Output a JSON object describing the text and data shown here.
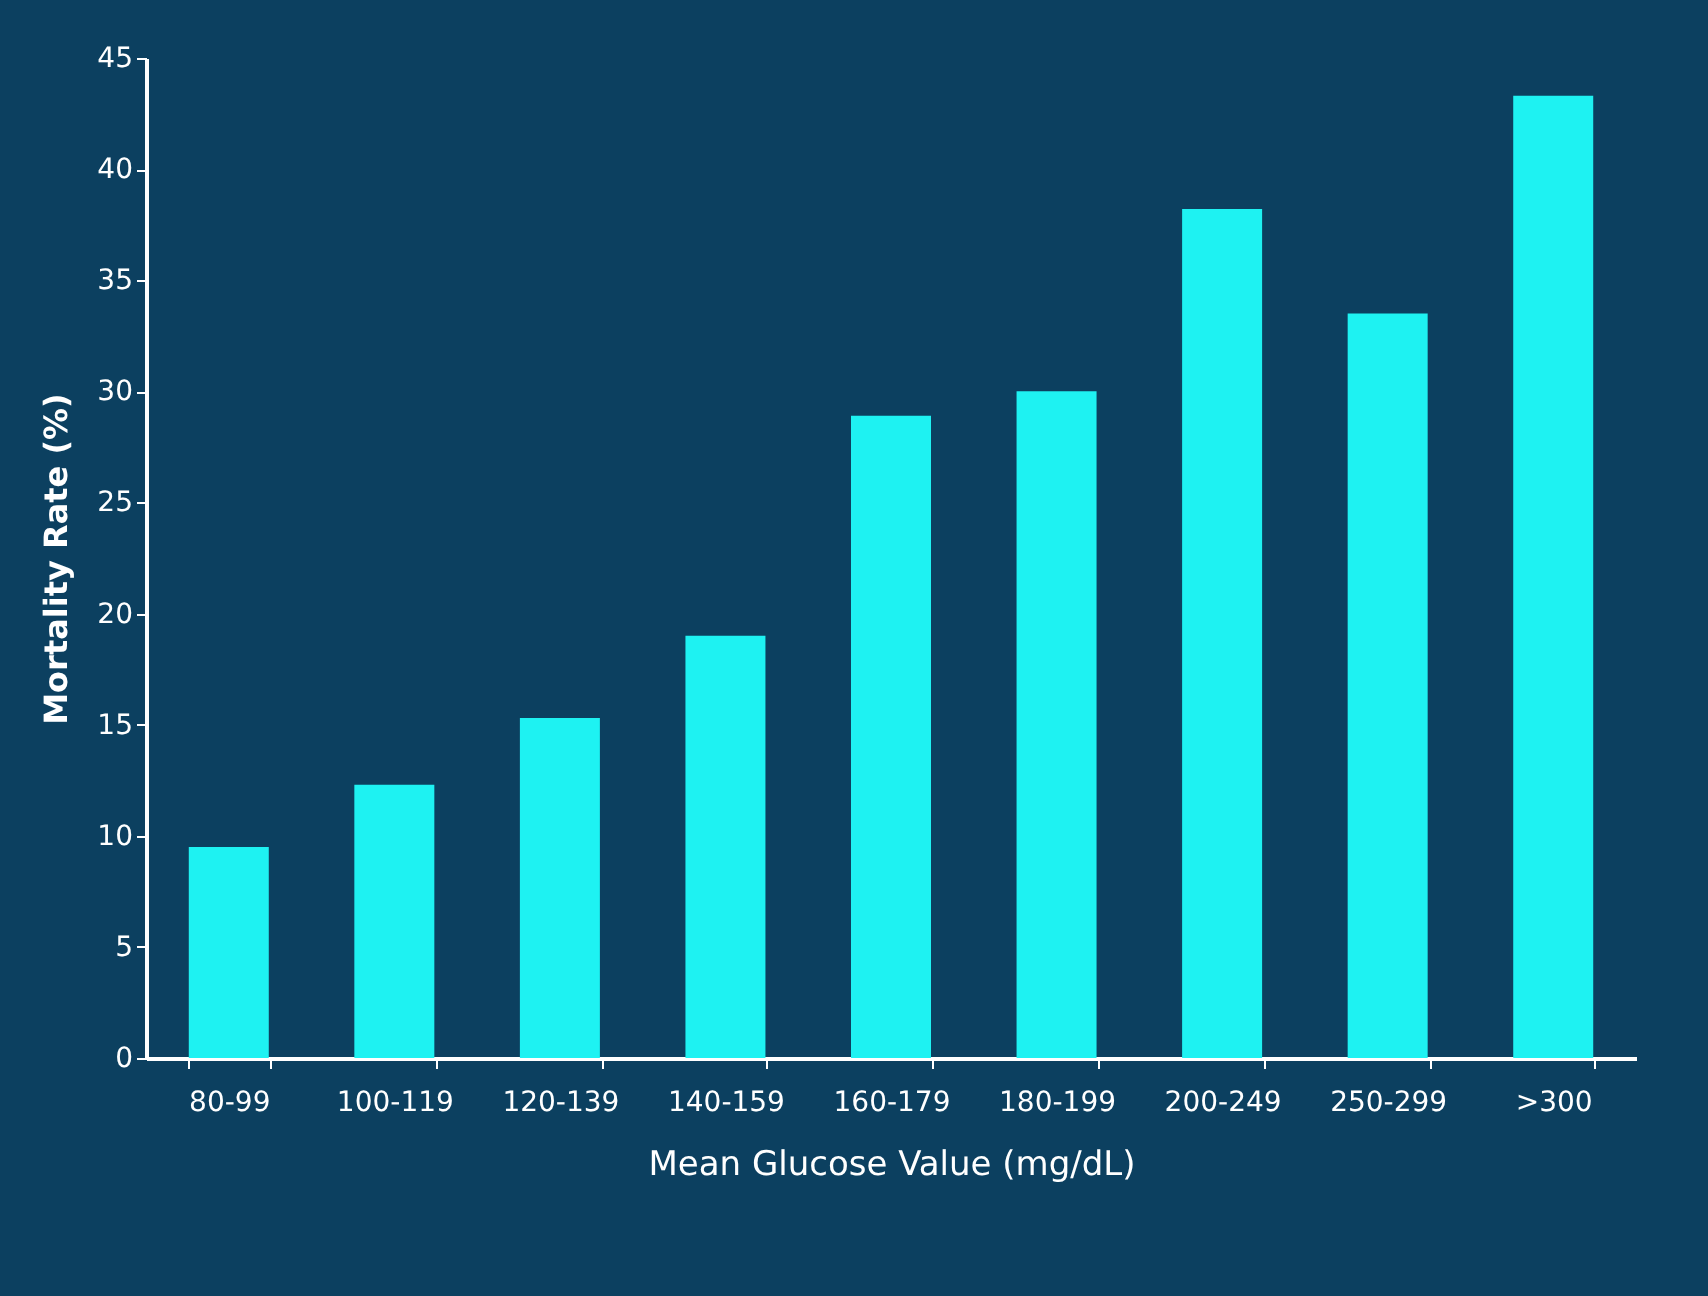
{
  "chart_data": {
    "type": "bar",
    "xlabel": "Mean Glucose Value (mg/dL)",
    "ylabel": "Mortality Rate (%)",
    "categories": [
      "80-99",
      "100-119",
      "120-139",
      "140-159",
      "160-179",
      "180-199",
      "200-249",
      "250-299",
      ">300"
    ],
    "values": [
      9.5,
      12.3,
      15.3,
      19,
      28.9,
      30,
      38.2,
      33.5,
      43.3
    ],
    "color": "#1ef2f2",
    "ylim": [
      0,
      45
    ],
    "yticks": [
      0,
      5,
      10,
      15,
      20,
      25,
      30,
      35,
      40,
      45
    ],
    "grid": false
  }
}
